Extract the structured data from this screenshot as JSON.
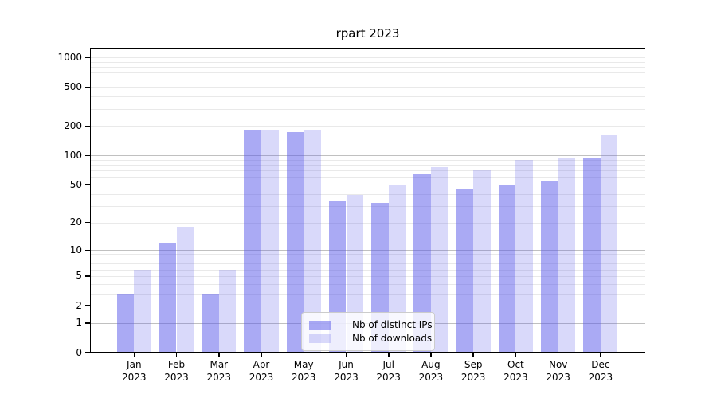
{
  "chart_data": {
    "type": "bar",
    "title": "rpart 2023",
    "categories": [
      "Jan 2023",
      "Feb 2023",
      "Mar 2023",
      "Apr 2023",
      "May 2023",
      "Jun 2023",
      "Jul 2023",
      "Aug 2023",
      "Sep 2023",
      "Oct 2023",
      "Nov 2023",
      "Dec 2023"
    ],
    "x_tick_months": [
      "Jan",
      "Feb",
      "Mar",
      "Apr",
      "May",
      "Jun",
      "Jul",
      "Aug",
      "Sep",
      "Oct",
      "Nov",
      "Dec"
    ],
    "x_tick_year": "2023",
    "series": [
      {
        "name": "Nb of distinct IPs",
        "color": "rgba(85,85,233,0.5)",
        "values": [
          3,
          12,
          3,
          185,
          175,
          34,
          32,
          64,
          45,
          50,
          55,
          96
        ]
      },
      {
        "name": "Nb of downloads",
        "color": "rgba(85,85,233,0.225)",
        "values": [
          6,
          18,
          6,
          185,
          185,
          39,
          50,
          76,
          70,
          90,
          95,
          165
        ]
      }
    ],
    "yaxis": {
      "scale": "log1p",
      "tick_values": [
        0,
        1,
        2,
        5,
        10,
        20,
        50,
        100,
        200,
        500,
        1000
      ],
      "tick_labels": [
        "0",
        "1",
        "2",
        "5",
        "10",
        "20",
        "50",
        "100",
        "200",
        "500",
        "1000"
      ],
      "range": [
        0,
        1260
      ],
      "major_gridlines": [
        1,
        10,
        100
      ],
      "grid": "horizontal major and minor"
    },
    "legend": {
      "position": "inside lower center",
      "entries": [
        "Nb of distinct IPs",
        "Nb of downloads"
      ]
    },
    "colors": {
      "bar_dark": "rgba(85,85,233,0.5)",
      "bar_light": "rgba(85,85,233,0.225)",
      "grid_major": "#c0c0c0",
      "grid_minor": "#e9e9e9",
      "axis": "#000000",
      "background": "#ffffff"
    }
  }
}
